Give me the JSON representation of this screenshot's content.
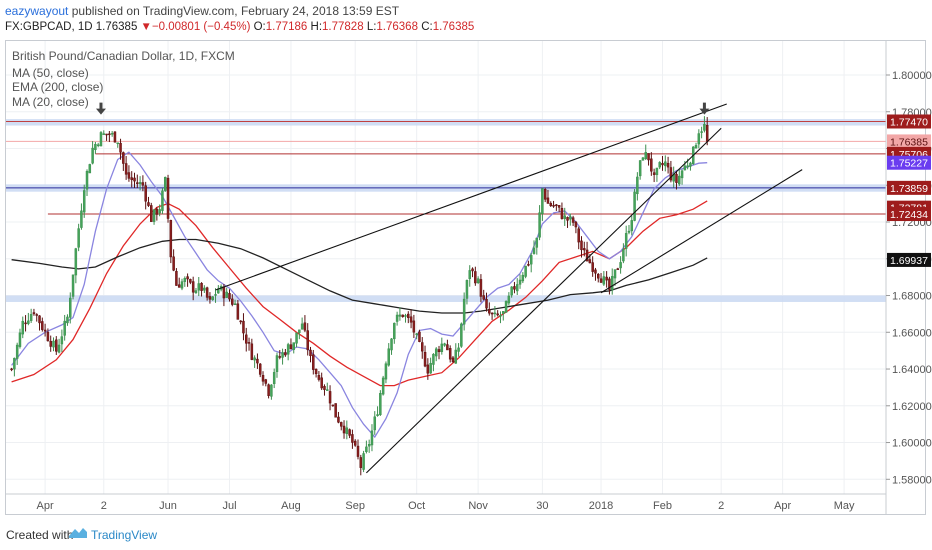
{
  "header": {
    "author": "eazywayout",
    "published_text": "published on TradingView.com, February 24, 2018 13:59 EST",
    "symbol": "FX:GBPCAD, 1D",
    "last": "1.76385",
    "change_arrow": "▼",
    "change": "−0.00801 (−0.45%)",
    "o_label": "O:",
    "o_value": "1.77186",
    "h_label": "H:",
    "h_value": "1.77828",
    "l_label": "L:",
    "l_value": "1.76368",
    "c_label": "C:",
    "c_value": "1.76385"
  },
  "legend": {
    "title": "British Pound/Canadian Dollar, 1D, FXCM",
    "items": [
      "MA (50, close)",
      "EMA (200, close)",
      "MA (20, close)"
    ]
  },
  "footer": {
    "created_with": "Created with",
    "brand": "TradingView"
  },
  "chart_data": {
    "type": "candlestick",
    "title": "British Pound/Canadian Dollar, 1D, FXCM",
    "ylim": [
      1.572,
      1.8185
    ],
    "yticks": [
      "1.80000",
      "1.78000",
      "1.76000",
      "1.74000",
      "1.72000",
      "1.70000",
      "1.68000",
      "1.66000",
      "1.64000",
      "1.62000",
      "1.60000",
      "1.58000"
    ],
    "xticks": [
      {
        "label": "Apr",
        "t": 12
      },
      {
        "label": "2",
        "t": 33
      },
      {
        "label": "Jun",
        "t": 56
      },
      {
        "label": "Jul",
        "t": 78
      },
      {
        "label": "Aug",
        "t": 100
      },
      {
        "label": "Sep",
        "t": 123
      },
      {
        "label": "Oct",
        "t": 145
      },
      {
        "label": "Nov",
        "t": 167
      },
      {
        "label": "30",
        "t": 190
      },
      {
        "label": "2018",
        "t": 211
      },
      {
        "label": "Feb",
        "t": 233
      },
      {
        "label": "2",
        "t": 254
      },
      {
        "label": "Apr",
        "t": 276
      },
      {
        "label": "May",
        "t": 298
      }
    ],
    "t_range": [
      -2,
      313
    ],
    "close_anchors": [
      [
        0,
        1.64
      ],
      [
        4,
        1.665
      ],
      [
        8,
        1.672
      ],
      [
        12,
        1.66
      ],
      [
        16,
        1.65
      ],
      [
        20,
        1.668
      ],
      [
        23,
        1.705
      ],
      [
        26,
        1.74
      ],
      [
        29,
        1.76
      ],
      [
        32,
        1.767
      ],
      [
        35,
        1.768
      ],
      [
        38,
        1.765
      ],
      [
        41,
        1.745
      ],
      [
        44,
        1.742
      ],
      [
        47,
        1.74
      ],
      [
        50,
        1.722
      ],
      [
        53,
        1.728
      ],
      [
        55,
        1.742
      ],
      [
        57,
        1.702
      ],
      [
        59,
        1.686
      ],
      [
        62,
        1.688
      ],
      [
        65,
        1.684
      ],
      [
        68,
        1.684
      ],
      [
        71,
        1.676
      ],
      [
        74,
        1.684
      ],
      [
        77,
        1.68
      ],
      [
        80,
        1.675
      ],
      [
        83,
        1.66
      ],
      [
        86,
        1.648
      ],
      [
        89,
        1.64
      ],
      [
        92,
        1.628
      ],
      [
        95,
        1.645
      ],
      [
        98,
        1.65
      ],
      [
        101,
        1.655
      ],
      [
        104,
        1.665
      ],
      [
        107,
        1.645
      ],
      [
        110,
        1.635
      ],
      [
        113,
        1.628
      ],
      [
        116,
        1.615
      ],
      [
        119,
        1.608
      ],
      [
        122,
        1.6
      ],
      [
        125,
        1.587
      ],
      [
        128,
        1.6
      ],
      [
        131,
        1.618
      ],
      [
        134,
        1.645
      ],
      [
        137,
        1.666
      ],
      [
        140,
        1.67
      ],
      [
        143,
        1.665
      ],
      [
        146,
        1.652
      ],
      [
        149,
        1.64
      ],
      [
        152,
        1.65
      ],
      [
        155,
        1.655
      ],
      [
        158,
        1.643
      ],
      [
        160,
        1.652
      ],
      [
        162,
        1.678
      ],
      [
        164,
        1.695
      ],
      [
        167,
        1.687
      ],
      [
        170,
        1.671
      ],
      [
        173,
        1.668
      ],
      [
        176,
        1.67
      ],
      [
        179,
        1.682
      ],
      [
        182,
        1.69
      ],
      [
        185,
        1.698
      ],
      [
        188,
        1.71
      ],
      [
        190,
        1.738
      ],
      [
        192,
        1.73
      ],
      [
        195,
        1.728
      ],
      [
        198,
        1.722
      ],
      [
        201,
        1.72
      ],
      [
        204,
        1.705
      ],
      [
        207,
        1.698
      ],
      [
        210,
        1.692
      ],
      [
        212,
        1.688
      ],
      [
        214,
        1.683
      ],
      [
        216,
        1.692
      ],
      [
        218,
        1.7
      ],
      [
        220,
        1.712
      ],
      [
        222,
        1.723
      ],
      [
        224,
        1.745
      ],
      [
        226,
        1.757
      ],
      [
        228,
        1.755
      ],
      [
        230,
        1.743
      ],
      [
        232,
        1.75
      ],
      [
        234,
        1.752
      ],
      [
        236,
        1.745
      ],
      [
        238,
        1.742
      ],
      [
        240,
        1.748
      ],
      [
        242,
        1.752
      ],
      [
        244,
        1.758
      ],
      [
        246,
        1.77
      ],
      [
        248,
        1.772
      ],
      [
        249,
        1.7639
      ]
    ],
    "moving_averages": [
      {
        "name": "MA (50, close)",
        "color": "#e02828",
        "points": [
          [
            0,
            1.633
          ],
          [
            8,
            1.637
          ],
          [
            16,
            1.645
          ],
          [
            22,
            1.656
          ],
          [
            28,
            1.673
          ],
          [
            34,
            1.692
          ],
          [
            40,
            1.707
          ],
          [
            46,
            1.719
          ],
          [
            52,
            1.728
          ],
          [
            56,
            1.73
          ],
          [
            60,
            1.727
          ],
          [
            66,
            1.718
          ],
          [
            72,
            1.706
          ],
          [
            78,
            1.695
          ],
          [
            84,
            1.684
          ],
          [
            90,
            1.674
          ],
          [
            96,
            1.667
          ],
          [
            102,
            1.66
          ],
          [
            108,
            1.654
          ],
          [
            114,
            1.647
          ],
          [
            120,
            1.641
          ],
          [
            126,
            1.636
          ],
          [
            132,
            1.631
          ],
          [
            137,
            1.631
          ],
          [
            142,
            1.634
          ],
          [
            148,
            1.636
          ],
          [
            154,
            1.638
          ],
          [
            160,
            1.646
          ],
          [
            166,
            1.656
          ],
          [
            172,
            1.666
          ],
          [
            178,
            1.672
          ],
          [
            184,
            1.679
          ],
          [
            190,
            1.688
          ],
          [
            196,
            1.698
          ],
          [
            202,
            1.701
          ],
          [
            208,
            1.704
          ],
          [
            214,
            1.7
          ],
          [
            220,
            1.706
          ],
          [
            226,
            1.715
          ],
          [
            232,
            1.722
          ],
          [
            238,
            1.724
          ],
          [
            244,
            1.727
          ],
          [
            249,
            1.7315
          ]
        ]
      },
      {
        "name": "EMA (200, close)",
        "color": "#222222",
        "points": [
          [
            0,
            1.6995
          ],
          [
            10,
            1.6975
          ],
          [
            18,
            1.6955
          ],
          [
            24,
            1.6945
          ],
          [
            30,
            1.6955
          ],
          [
            38,
            1.701
          ],
          [
            46,
            1.706
          ],
          [
            54,
            1.7095
          ],
          [
            60,
            1.7105
          ],
          [
            66,
            1.7105
          ],
          [
            74,
            1.7085
          ],
          [
            82,
            1.7055
          ],
          [
            90,
            1.7005
          ],
          [
            98,
            1.6945
          ],
          [
            106,
            1.6885
          ],
          [
            114,
            1.6825
          ],
          [
            122,
            1.6775
          ],
          [
            130,
            1.6755
          ],
          [
            138,
            1.6735
          ],
          [
            146,
            1.6715
          ],
          [
            154,
            1.6705
          ],
          [
            162,
            1.6705
          ],
          [
            168,
            1.6715
          ],
          [
            176,
            1.6735
          ],
          [
            184,
            1.6755
          ],
          [
            192,
            1.6775
          ],
          [
            200,
            1.6805
          ],
          [
            208,
            1.6815
          ],
          [
            214,
            1.6825
          ],
          [
            220,
            1.6855
          ],
          [
            228,
            1.6885
          ],
          [
            236,
            1.6925
          ],
          [
            244,
            1.6965
          ],
          [
            249,
            1.7005
          ]
        ]
      },
      {
        "name": "MA (20, close)",
        "color": "#8a85e0",
        "points": [
          [
            0,
            1.642
          ],
          [
            6,
            1.654
          ],
          [
            12,
            1.66
          ],
          [
            18,
            1.664
          ],
          [
            22,
            1.668
          ],
          [
            26,
            1.686
          ],
          [
            30,
            1.715
          ],
          [
            34,
            1.738
          ],
          [
            38,
            1.754
          ],
          [
            42,
            1.758
          ],
          [
            46,
            1.751
          ],
          [
            50,
            1.742
          ],
          [
            54,
            1.734
          ],
          [
            58,
            1.723
          ],
          [
            62,
            1.712
          ],
          [
            66,
            1.703
          ],
          [
            70,
            1.694
          ],
          [
            74,
            1.688
          ],
          [
            78,
            1.684
          ],
          [
            82,
            1.677
          ],
          [
            86,
            1.669
          ],
          [
            90,
            1.66
          ],
          [
            94,
            1.65
          ],
          [
            98,
            1.648
          ],
          [
            102,
            1.652
          ],
          [
            106,
            1.651
          ],
          [
            110,
            1.645
          ],
          [
            114,
            1.638
          ],
          [
            118,
            1.631
          ],
          [
            122,
            1.619
          ],
          [
            126,
            1.61
          ],
          [
            130,
            1.603
          ],
          [
            134,
            1.613
          ],
          [
            138,
            1.627
          ],
          [
            142,
            1.648
          ],
          [
            146,
            1.661
          ],
          [
            150,
            1.662
          ],
          [
            154,
            1.659
          ],
          [
            158,
            1.658
          ],
          [
            162,
            1.665
          ],
          [
            166,
            1.672
          ],
          [
            170,
            1.679
          ],
          [
            174,
            1.684
          ],
          [
            178,
            1.686
          ],
          [
            182,
            1.692
          ],
          [
            186,
            1.703
          ],
          [
            190,
            1.719
          ],
          [
            194,
            1.725
          ],
          [
            198,
            1.726
          ],
          [
            202,
            1.72
          ],
          [
            206,
            1.712
          ],
          [
            210,
            1.704
          ],
          [
            214,
            1.7
          ],
          [
            218,
            1.704
          ],
          [
            222,
            1.712
          ],
          [
            226,
            1.725
          ],
          [
            230,
            1.738
          ],
          [
            234,
            1.744
          ],
          [
            238,
            1.748
          ],
          [
            242,
            1.75
          ],
          [
            246,
            1.752
          ],
          [
            249,
            1.7523
          ]
        ]
      }
    ],
    "price_labels": [
      {
        "value": "1.77470",
        "y": 1.7747,
        "bg": "#9e1c1c",
        "fg": "#ffffff"
      },
      {
        "value": "1.76385",
        "y": 1.76385,
        "bg": "#f2a7a7",
        "fg": "#5a1010"
      },
      {
        "value": "1.75706",
        "y": 1.75706,
        "bg": "#9e1c1c",
        "fg": "#ffffff"
      },
      {
        "value": "1.75227",
        "y": 1.75227,
        "bg": "#6a3cf0",
        "fg": "#ffffff"
      },
      {
        "value": "1.73859",
        "y": 1.73859,
        "bg": "#9e1c1c",
        "fg": "#ffffff"
      },
      {
        "value": "1.72781",
        "y": 1.72781,
        "bg": "#9e1c1c",
        "fg": "#ffffff"
      },
      {
        "value": "1.72434",
        "y": 1.72434,
        "bg": "#9e1c1c",
        "fg": "#ffffff"
      },
      {
        "value": "1.69937",
        "y": 1.69937,
        "bg": "#111111",
        "fg": "#ffffff"
      }
    ],
    "zones": [
      {
        "y1": 1.7725,
        "y2": 1.776,
        "color": "#c9d8f2"
      },
      {
        "y1": 1.7365,
        "y2": 1.7405,
        "color": "#c9d8f2"
      },
      {
        "y1": 1.6765,
        "y2": 1.68,
        "color": "#c9d8f2"
      }
    ],
    "hlines": [
      {
        "y": 1.7747,
        "t1": -2,
        "t2": 313,
        "color": "#c04040"
      },
      {
        "y": 1.76385,
        "t1": -2,
        "t2": 313,
        "color": "#f2a7a7"
      },
      {
        "y": 1.75706,
        "t1": 30,
        "t2": 313,
        "color": "#b03030"
      },
      {
        "y": 1.73859,
        "t1": -2,
        "t2": 313,
        "color": "#2a2a9a"
      },
      {
        "y": 1.72434,
        "t1": 13,
        "t2": 313,
        "color": "#b03030"
      }
    ],
    "trendlines": [
      {
        "t1": 73,
        "y1": 1.683,
        "t2": 256,
        "y2": 1.7842
      },
      {
        "t1": 127,
        "y1": 1.5835,
        "t2": 254,
        "y2": 1.771
      },
      {
        "t1": 211,
        "y1": 1.6815,
        "t2": 283,
        "y2": 1.7485
      }
    ],
    "arrows": [
      {
        "t": 32,
        "y": 1.7795
      },
      {
        "t": 248,
        "y": 1.7795
      }
    ]
  }
}
